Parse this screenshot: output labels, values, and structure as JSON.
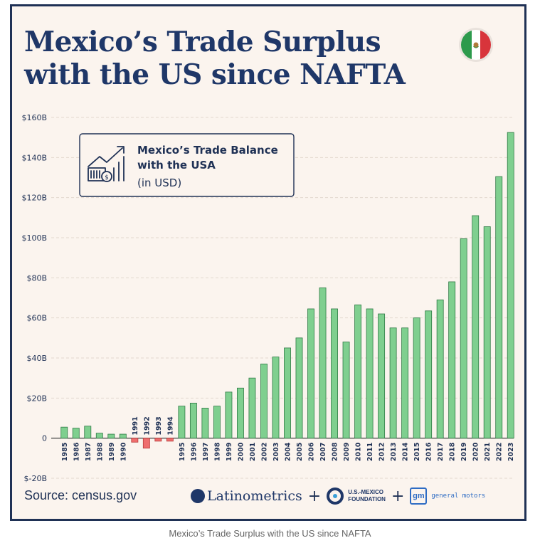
{
  "title": "Mexico’s Trade Surplus with the US since NAFTA",
  "caption": "Mexico’s Trade Surplus with the US since NAFTA",
  "source": "Source: census.gov",
  "logos": {
    "latinometrics": "Latinometrics",
    "usmx_line1": "U.S.-MEXICO",
    "usmx_line2": "FOUNDATION",
    "gm_mark": "gm",
    "gm_text": "general motors",
    "plus": "+"
  },
  "legend": {
    "line1": "Mexico’s Trade Balance",
    "line2": "with the USA",
    "line3": "(in USD)"
  },
  "colors": {
    "positive": "#7fcf8f",
    "positive_stroke": "#2f7a45",
    "negative": "#ef6e6e",
    "negative_stroke": "#b83b3b",
    "title": "#1f3768",
    "grid": "#e3d9cf"
  },
  "chart_data": {
    "type": "bar",
    "title": "Mexico’s Trade Balance with the USA (in USD)",
    "xlabel": "",
    "ylabel": "",
    "ylim": [
      -20,
      160
    ],
    "yticks": [
      -20,
      0,
      20,
      40,
      60,
      80,
      100,
      120,
      140,
      160
    ],
    "ytick_labels": [
      "$-20B",
      "0",
      "$20B",
      "$40B",
      "$60B",
      "$80B",
      "$100B",
      "$120B",
      "$140B",
      "$160B"
    ],
    "categories": [
      "1985",
      "1986",
      "1987",
      "1988",
      "1989",
      "1990",
      "1991",
      "1992",
      "1993",
      "1994",
      "1995",
      "1996",
      "1997",
      "1998",
      "1999",
      "2000",
      "2001",
      "2002",
      "2003",
      "2004",
      "2005",
      "2006",
      "2007",
      "2008",
      "2009",
      "2010",
      "2011",
      "2012",
      "2013",
      "2014",
      "2015",
      "2016",
      "2017",
      "2018",
      "2019",
      "2020",
      "2021",
      "2022",
      "2023"
    ],
    "values": [
      5.5,
      5.0,
      6.0,
      2.5,
      2.0,
      2.0,
      -2.0,
      -5.0,
      -1.5,
      -1.5,
      16.0,
      17.5,
      15.0,
      16.0,
      23.0,
      25.0,
      30.0,
      37.0,
      40.5,
      45.0,
      50.0,
      64.5,
      75.0,
      64.5,
      48.0,
      66.5,
      64.5,
      62.0,
      55.0,
      55.0,
      60.0,
      63.5,
      69.0,
      78.0,
      99.5,
      111.0,
      105.5,
      130.5,
      152.5
    ],
    "grid": true,
    "legend_position": "top-left"
  }
}
